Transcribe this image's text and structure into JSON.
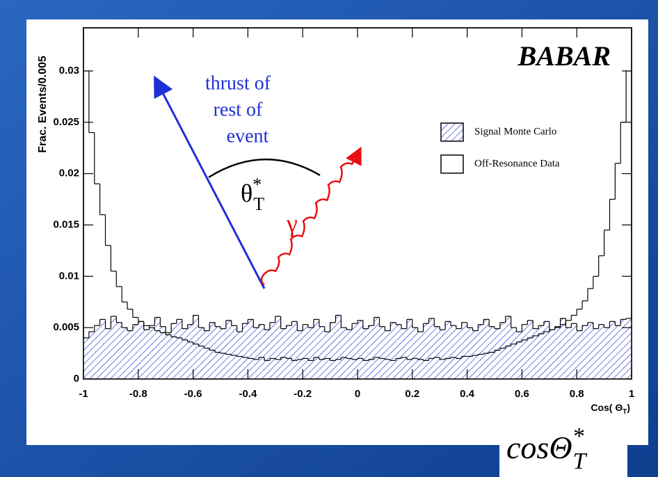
{
  "chart_data": {
    "type": "histogram",
    "y_label": "Frac. Events/0.005",
    "x_label": {
      "text": "Cos( Θ",
      "sub": "T",
      "close": ")"
    },
    "logo": "BABAR",
    "formula": {
      "base": "cosΘ",
      "sup": "*",
      "sub": "T"
    },
    "annotations": {
      "thrust": [
        "thrust of",
        "rest of",
        "event"
      ],
      "theta": {
        "base": "θ",
        "sup": "*",
        "sub": "T"
      },
      "gamma": "γ"
    },
    "bins": [
      -1,
      -0.98,
      -0.96,
      -0.94,
      -0.92,
      -0.9,
      -0.88,
      -0.86,
      -0.84,
      -0.82,
      -0.8,
      -0.78,
      -0.76,
      -0.74,
      -0.72,
      -0.7,
      -0.68,
      -0.66,
      -0.64,
      -0.62,
      -0.6,
      -0.58,
      -0.56,
      -0.54,
      -0.52,
      -0.5,
      -0.48,
      -0.46,
      -0.44,
      -0.42,
      -0.4,
      -0.38,
      -0.36,
      -0.34,
      -0.32,
      -0.3,
      -0.28,
      -0.26,
      -0.24,
      -0.22,
      -0.2,
      -0.18,
      -0.16,
      -0.14,
      -0.12,
      -0.1,
      -0.08,
      -0.06,
      -0.04,
      -0.02,
      0,
      0.02,
      0.04,
      0.06,
      0.08,
      0.1,
      0.12,
      0.14,
      0.16,
      0.18,
      0.2,
      0.22,
      0.24,
      0.26,
      0.28,
      0.3,
      0.32,
      0.34,
      0.36,
      0.38,
      0.4,
      0.42,
      0.44,
      0.46,
      0.48,
      0.5,
      0.52,
      0.54,
      0.56,
      0.58,
      0.6,
      0.62,
      0.64,
      0.66,
      0.68,
      0.7,
      0.72,
      0.74,
      0.76,
      0.78,
      0.8,
      0.82,
      0.84,
      0.86,
      0.88,
      0.9,
      0.92,
      0.94,
      0.96,
      0.98,
      1
    ],
    "series": [
      {
        "name": "Signal Monte Carlo",
        "color": "#1f2fd8",
        "hatch": true,
        "values": [
          0.004,
          0.0046,
          0.0052,
          0.0058,
          0.0049,
          0.0061,
          0.0055,
          0.005,
          0.0047,
          0.0053,
          0.0056,
          0.0048,
          0.0052,
          0.006,
          0.0051,
          0.0045,
          0.0054,
          0.0058,
          0.0049,
          0.0053,
          0.0062,
          0.005,
          0.0047,
          0.0055,
          0.0051,
          0.0049,
          0.0057,
          0.0052,
          0.0046,
          0.0054,
          0.0058,
          0.005,
          0.0053,
          0.0048,
          0.0055,
          0.0061,
          0.0049,
          0.0052,
          0.0056,
          0.0047,
          0.0053,
          0.005,
          0.0058,
          0.0051,
          0.0046,
          0.0055,
          0.0062,
          0.005,
          0.0048,
          0.0054,
          0.0057,
          0.0049,
          0.0052,
          0.006,
          0.0051,
          0.0047,
          0.0055,
          0.0053,
          0.0049,
          0.0058,
          0.005,
          0.0046,
          0.0054,
          0.0059,
          0.0051,
          0.0048,
          0.0056,
          0.0052,
          0.0049,
          0.0055,
          0.005,
          0.0047,
          0.0053,
          0.0058,
          0.0051,
          0.0049,
          0.0055,
          0.0061,
          0.005,
          0.0046,
          0.0053,
          0.0057,
          0.0049,
          0.0052,
          0.0056,
          0.0048,
          0.0051,
          0.0059,
          0.005,
          0.0054,
          0.0047,
          0.0052,
          0.0055,
          0.0049,
          0.0053,
          0.005,
          0.0056,
          0.0052,
          0.0058,
          0.0059
        ]
      },
      {
        "name": "Off-Resonance Data",
        "color": "#000000",
        "hatch": false,
        "values": [
          0.03,
          0.024,
          0.019,
          0.016,
          0.013,
          0.0105,
          0.009,
          0.0075,
          0.0068,
          0.006,
          0.0056,
          0.0052,
          0.005,
          0.0047,
          0.0045,
          0.0043,
          0.0041,
          0.004,
          0.0038,
          0.0036,
          0.0034,
          0.0032,
          0.003,
          0.0028,
          0.0026,
          0.0025,
          0.0024,
          0.0023,
          0.0022,
          0.0021,
          0.002,
          0.0019,
          0.0021,
          0.0018,
          0.002,
          0.0019,
          0.0021,
          0.002,
          0.0018,
          0.0019,
          0.002,
          0.0018,
          0.0021,
          0.0019,
          0.002,
          0.0018,
          0.0019,
          0.0021,
          0.002,
          0.0019,
          0.002,
          0.0018,
          0.0019,
          0.0021,
          0.002,
          0.0019,
          0.0018,
          0.002,
          0.0021,
          0.0019,
          0.002,
          0.0019,
          0.0018,
          0.002,
          0.0021,
          0.0019,
          0.002,
          0.0021,
          0.002,
          0.0022,
          0.0022,
          0.0023,
          0.0024,
          0.0025,
          0.0026,
          0.0028,
          0.003,
          0.0032,
          0.0034,
          0.0036,
          0.0038,
          0.004,
          0.0042,
          0.0044,
          0.0046,
          0.0048,
          0.005,
          0.0053,
          0.0057,
          0.0062,
          0.0068,
          0.0076,
          0.0088,
          0.01,
          0.012,
          0.0145,
          0.0175,
          0.021,
          0.025,
          0.03
        ]
      }
    ],
    "xlim": [
      -1,
      1
    ],
    "ylim": [
      0,
      0.0342
    ],
    "xticks": [
      -1,
      -0.8,
      -0.6,
      -0.4,
      -0.2,
      0,
      0.2,
      0.4,
      0.6,
      0.8,
      1
    ],
    "yticks": [
      0,
      0.005,
      0.01,
      0.015,
      0.02,
      0.025,
      0.03
    ]
  }
}
